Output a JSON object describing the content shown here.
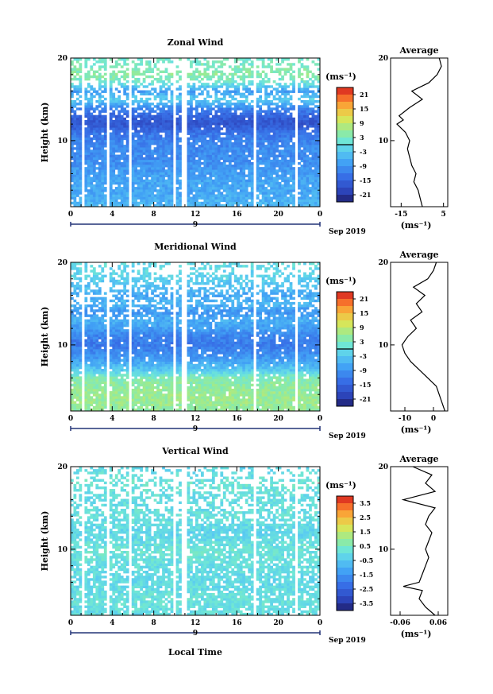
{
  "chart_data": [
    {
      "type": "heatmap",
      "title": "Zonal Wind",
      "ylabel": "Height (km)",
      "y_ticks": [
        "10",
        "20"
      ],
      "ylim": [
        2,
        20
      ],
      "x_ticks": [
        "0",
        "4",
        "8",
        "12",
        "16",
        "20",
        "0"
      ],
      "xlim": [
        0,
        24
      ],
      "date_marker": "9",
      "date_label": "Sep 2019",
      "colorbar": {
        "unit": "(ms⁻¹)",
        "ticks": [
          "21",
          "15",
          "9",
          "3",
          "-3",
          "-9",
          "-15",
          "-21"
        ],
        "range": [
          -24,
          24
        ],
        "zero_line": 0
      },
      "field_profile": {
        "heights": [
          2,
          3,
          4,
          5,
          6,
          7,
          8,
          9,
          10,
          11,
          12,
          13,
          14,
          15,
          16,
          17,
          18,
          19,
          20
        ],
        "values": [
          -5,
          -6,
          -7,
          -7,
          -8,
          -9,
          -10,
          -10,
          -11,
          -13,
          -17,
          -15,
          -10,
          -2,
          -8,
          1,
          5,
          3,
          2
        ]
      },
      "average": {
        "title": "Average",
        "xlabel": "(ms⁻¹)",
        "x_ticks": [
          "-15",
          "5"
        ],
        "xlim": [
          -20,
          7
        ],
        "y_ticks": [
          "10",
          "20"
        ],
        "heights": [
          2,
          3,
          4,
          5,
          6,
          7,
          8,
          9,
          10,
          11,
          12,
          12.5,
          13,
          14,
          15,
          16,
          17,
          18,
          19,
          20
        ],
        "values": [
          -5,
          -6,
          -7,
          -9,
          -8,
          -10,
          -11,
          -12,
          -11,
          -13,
          -17,
          -14,
          -16,
          -11,
          -5,
          -10,
          -2,
          2,
          4,
          3
        ]
      }
    },
    {
      "type": "heatmap",
      "title": "Meridional Wind",
      "ylabel": "Height (km)",
      "y_ticks": [
        "10",
        "20"
      ],
      "ylim": [
        2,
        20
      ],
      "x_ticks": [
        "0",
        "4",
        "8",
        "12",
        "16",
        "20",
        "0"
      ],
      "xlim": [
        0,
        24
      ],
      "date_marker": "9",
      "date_label": "Sep 2019",
      "colorbar": {
        "unit": "(ms⁻¹)",
        "ticks": [
          "21",
          "15",
          "9",
          "3",
          "-3",
          "-9",
          "-15",
          "-21"
        ],
        "range": [
          -24,
          24
        ],
        "zero_line": 0
      },
      "field_profile": {
        "heights": [
          2,
          3,
          4,
          5,
          6,
          7,
          8,
          9,
          10,
          11,
          12,
          13,
          14,
          15,
          16,
          17,
          18,
          19,
          20
        ],
        "values": [
          5,
          6,
          6,
          5,
          4,
          -3,
          -7,
          -10,
          -12,
          -11,
          -8,
          -6,
          -9,
          -5,
          -7,
          -4,
          -2,
          -1,
          0
        ]
      },
      "average": {
        "title": "Average",
        "xlabel": "(ms⁻¹)",
        "x_ticks": [
          "-10",
          "0"
        ],
        "xlim": [
          -15,
          5
        ],
        "y_ticks": [
          "10",
          "20"
        ],
        "heights": [
          2,
          3,
          4,
          5,
          6,
          7,
          8,
          9,
          10,
          11,
          12,
          13,
          14,
          15,
          16,
          17,
          18,
          19,
          20
        ],
        "values": [
          4,
          3,
          2,
          1,
          -2,
          -5,
          -8,
          -10,
          -11,
          -9,
          -6,
          -8,
          -4,
          -6,
          -3,
          -7,
          -2,
          0,
          1
        ]
      }
    },
    {
      "type": "heatmap",
      "title": "Vertical Wind",
      "ylabel": "Height (km)",
      "xlabel": "Local Time",
      "y_ticks": [
        "10",
        "20"
      ],
      "ylim": [
        2,
        20
      ],
      "x_ticks": [
        "0",
        "4",
        "8",
        "12",
        "16",
        "20",
        "0"
      ],
      "xlim": [
        0,
        24
      ],
      "date_marker": "9",
      "date_label": "Sep 2019",
      "colorbar": {
        "unit": "(ms⁻¹)",
        "ticks": [
          "3.5",
          "2.5",
          "1.5",
          "0.5",
          "-0.5",
          "-1.5",
          "-2.5",
          "-3.5"
        ],
        "range": [
          -4,
          4
        ]
      },
      "field_profile": {
        "heights": [
          2,
          4,
          6,
          8,
          10,
          12,
          14,
          16,
          18,
          20
        ],
        "values": [
          0,
          0.1,
          -0.1,
          0,
          0.2,
          -0.2,
          0.1,
          0,
          0.2,
          -0.1
        ]
      },
      "average": {
        "title": "Average",
        "xlabel": "(ms⁻¹)",
        "x_ticks": [
          "-0.06",
          "0.06"
        ],
        "xlim": [
          -0.09,
          0.09
        ],
        "y_ticks": [
          "10",
          "20"
        ],
        "heights": [
          2,
          3,
          4,
          5,
          5.5,
          6,
          7,
          8,
          9,
          10,
          11,
          12,
          13,
          14,
          15,
          16,
          17,
          18,
          19,
          20
        ],
        "values": [
          0.05,
          0.02,
          0.0,
          0.01,
          -0.05,
          0.0,
          0.01,
          0.02,
          0.03,
          0.02,
          0.03,
          0.04,
          0.02,
          0.03,
          0.05,
          -0.05,
          0.05,
          0.02,
          0.04,
          -0.02
        ]
      }
    }
  ]
}
